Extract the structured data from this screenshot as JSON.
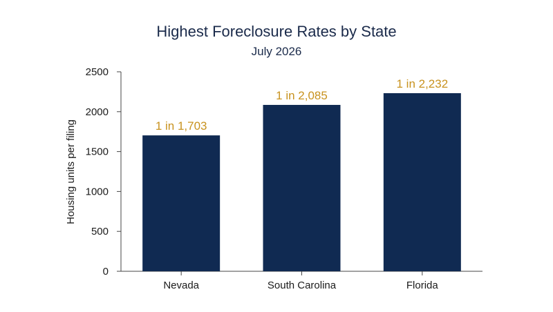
{
  "chart_data": {
    "type": "bar",
    "title": "Highest Foreclosure Rates by State",
    "subtitle": "July 2026",
    "xlabel": "",
    "ylabel": "Housing units per filing",
    "categories": [
      "Nevada",
      "South Carolina",
      "Florida"
    ],
    "values": [
      1703,
      2085,
      2232
    ],
    "data_labels": [
      "1 in 1,703",
      "1 in 2,085",
      "1 in 2,232"
    ],
    "ylim": [
      0,
      2500
    ],
    "yticks": [
      0,
      500,
      1000,
      1500,
      2000,
      2500
    ],
    "grid": false,
    "legend": "none",
    "colors": {
      "bar": "#102a52",
      "data_label": "#c8921e",
      "axis": "#444444",
      "text": "#1a2a4a"
    }
  }
}
